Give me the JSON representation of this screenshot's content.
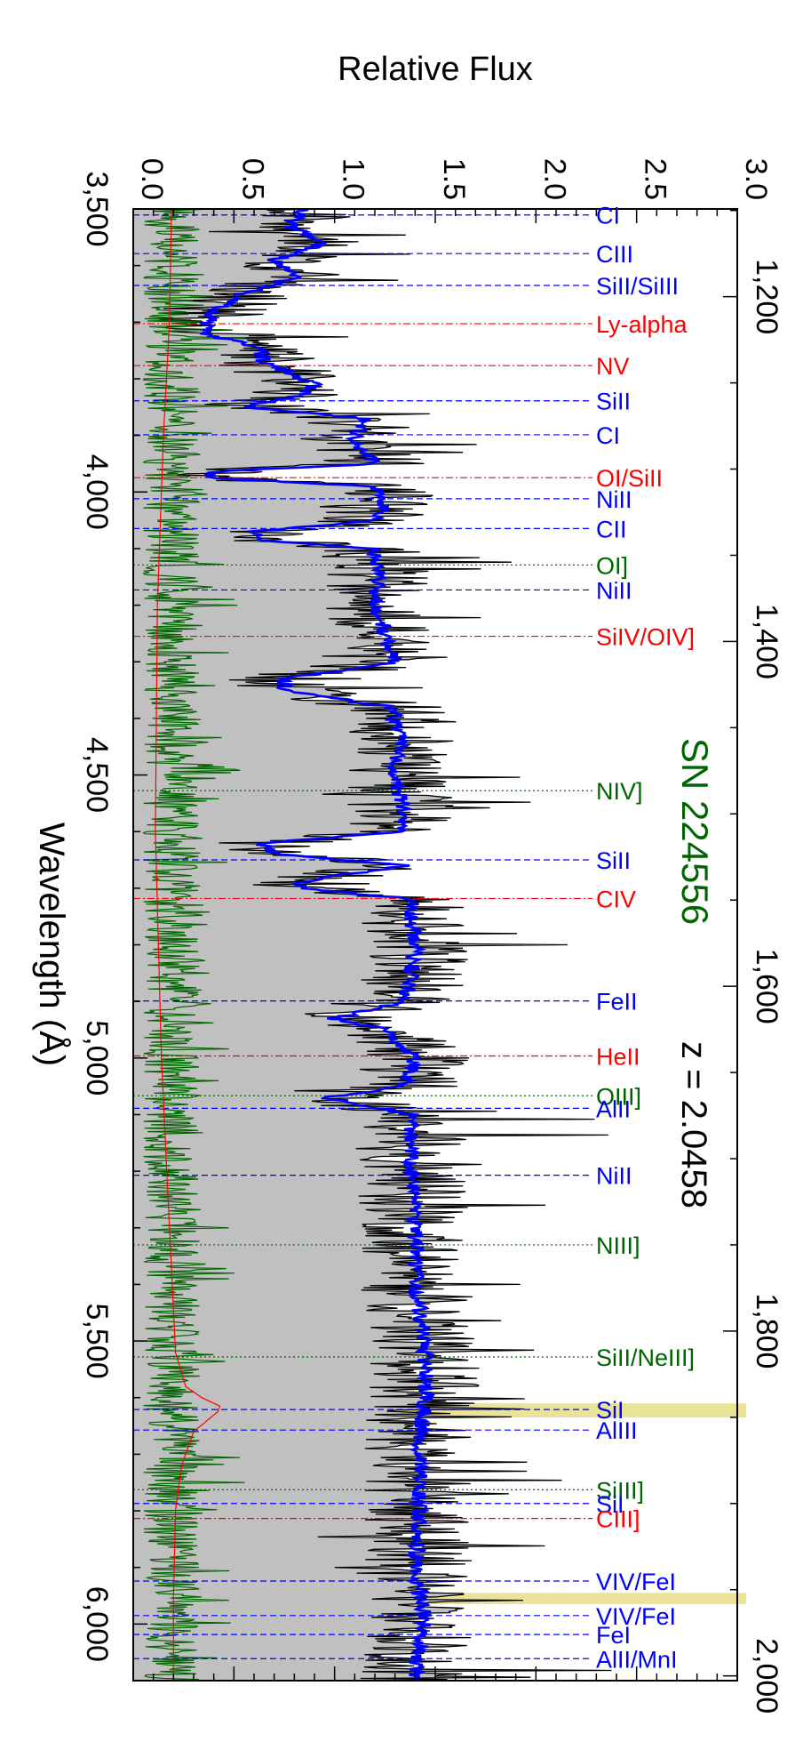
{
  "chart_data": {
    "type": "line",
    "orientation": "rotated-90",
    "title": "SN 224556",
    "redshift_label": "z = 2.0458",
    "xlabel": "Wavelength (Å)",
    "ylabel": "Relative Flux",
    "xlim": [
      3500,
      6100
    ],
    "ylim": [
      0.0,
      3.0
    ],
    "x_ticks": [
      {
        "value": 3500,
        "label": "3,500"
      },
      {
        "value": 4000,
        "label": "4,000"
      },
      {
        "value": 4500,
        "label": "4,500"
      },
      {
        "value": 5000,
        "label": "5,000"
      },
      {
        "value": 5500,
        "label": "5,500"
      },
      {
        "value": 6000,
        "label": "6,000"
      }
    ],
    "y_ticks": [
      {
        "value": 0.0,
        "label": "0.0"
      },
      {
        "value": 0.5,
        "label": "0.5"
      },
      {
        "value": 1.0,
        "label": "1.0"
      },
      {
        "value": 1.5,
        "label": "1.5"
      },
      {
        "value": 2.0,
        "label": "2.0"
      },
      {
        "value": 2.5,
        "label": "2.5"
      },
      {
        "value": 3.0,
        "label": "3.0"
      }
    ],
    "rest_ticks": [
      {
        "value": 1200,
        "label": "1,200"
      },
      {
        "value": 1400,
        "label": "1,400"
      },
      {
        "value": 1600,
        "label": "1,600"
      },
      {
        "value": 1800,
        "label": "1,800"
      },
      {
        "value": 2000,
        "label": "2,000"
      }
    ],
    "redshift": 2.0458,
    "grid": false,
    "colors": {
      "observed_fill": "#c0c0c0",
      "observed_line": "#000000",
      "model": "#0000ff",
      "error": "#006400",
      "sky": "#ff0000",
      "title": "#006400",
      "masked": "#ece39a"
    },
    "masked_regions": [
      [
        5610,
        5635
      ],
      [
        5945,
        5965
      ]
    ],
    "sky_curve": {
      "x": [
        3500,
        3700,
        3900,
        4200,
        4600,
        5000,
        5300,
        5520,
        5580,
        5600,
        5615,
        5625,
        5660,
        5720,
        5800,
        5950,
        6100
      ],
      "y": [
        0.19,
        0.18,
        0.15,
        0.12,
        0.11,
        0.14,
        0.18,
        0.21,
        0.26,
        0.34,
        0.43,
        0.42,
        0.3,
        0.24,
        0.21,
        0.2,
        0.2
      ]
    },
    "model_curve": {
      "x": [
        3500,
        3530,
        3560,
        3590,
        3620,
        3650,
        3680,
        3700,
        3720,
        3745,
        3770,
        3790,
        3810,
        3830,
        3850,
        3870,
        3890,
        3910,
        3930,
        3950,
        3965,
        3975,
        3990,
        4020,
        4050,
        4070,
        4085,
        4100,
        4150,
        4200,
        4250,
        4300,
        4330,
        4350,
        4380,
        4400,
        4450,
        4500,
        4550,
        4600,
        4620,
        4640,
        4660,
        4690,
        4700,
        4720,
        4740,
        4800,
        4850,
        4900,
        4930,
        4950,
        5000,
        5050,
        5070,
        5100,
        5200,
        5300,
        5400,
        5500,
        5600,
        5700,
        5800,
        5900,
        6000,
        6050,
        6100
      ],
      "y": [
        0.85,
        0.78,
        0.95,
        0.7,
        0.8,
        0.55,
        0.4,
        0.38,
        0.35,
        0.62,
        0.65,
        0.78,
        0.9,
        0.82,
        0.55,
        1.15,
        1.12,
        1.1,
        1.15,
        1.2,
        0.35,
        0.4,
        1.2,
        1.25,
        1.2,
        0.6,
        0.65,
        1.2,
        1.22,
        1.2,
        1.25,
        1.3,
        0.75,
        0.75,
        1.28,
        1.3,
        1.32,
        1.3,
        1.33,
        1.35,
        0.65,
        0.7,
        1.35,
        0.8,
        0.85,
        1.4,
        1.38,
        1.4,
        1.38,
        1.35,
        1.0,
        1.25,
        1.4,
        1.35,
        0.95,
        1.38,
        1.38,
        1.4,
        1.4,
        1.45,
        1.45,
        1.42,
        1.42,
        1.4,
        1.45,
        1.42,
        1.4
      ]
    },
    "line_ids": [
      {
        "label": "CI",
        "rest": 1152.6,
        "color": "#0000ff",
        "style": "dashed"
      },
      {
        "label": "CIII",
        "rest": 1175.0,
        "color": "#0000ff",
        "style": "dashed"
      },
      {
        "label": "SiII/SiIII",
        "rest": 1193.5,
        "color": "#0000ff",
        "style": "dashed"
      },
      {
        "label": "Ly-alpha",
        "rest": 1215.7,
        "color": "#ff0000",
        "style": "dashdot"
      },
      {
        "label": "NV",
        "rest": 1240.0,
        "color": "#ff0000",
        "style": "dashdot"
      },
      {
        "label": "SiII",
        "rest": 1260.4,
        "color": "#0000ff",
        "style": "dashed"
      },
      {
        "label": "CI",
        "rest": 1280.1,
        "color": "#0000ff",
        "style": "dashed"
      },
      {
        "label": "OI/SiII",
        "rest": 1305.0,
        "color": "#ff0000",
        "style": "dashdot"
      },
      {
        "label": "NiII",
        "rest": 1317.2,
        "color": "#0000ff",
        "style": "dashed"
      },
      {
        "label": "CII",
        "rest": 1334.5,
        "color": "#0000ff",
        "style": "dashed"
      },
      {
        "label": "OI]",
        "rest": 1355.6,
        "color": "#006400",
        "style": "dotted"
      },
      {
        "label": "NiII",
        "rest": 1370.1,
        "color": "#0000ff",
        "style": "dashed"
      },
      {
        "label": "SiIV/OIV]",
        "rest": 1397.0,
        "color": "#ff0000",
        "style": "dashdot"
      },
      {
        "label": "NIV]",
        "rest": 1486.5,
        "color": "#006400",
        "style": "dotted"
      },
      {
        "label": "SiII",
        "rest": 1526.7,
        "color": "#0000ff",
        "style": "dashed"
      },
      {
        "label": "CIV",
        "rest": 1549.1,
        "color": "#ff0000",
        "style": "dashdot"
      },
      {
        "label": "FeII",
        "rest": 1608.5,
        "color": "#0000ff",
        "style": "dashed"
      },
      {
        "label": "HeII",
        "rest": 1640.4,
        "color": "#ff0000",
        "style": "dashdot"
      },
      {
        "label": "OIII]",
        "rest": 1663.5,
        "color": "#006400",
        "style": "dotted"
      },
      {
        "label": "AlII",
        "rest": 1670.8,
        "color": "#0000ff",
        "style": "dashed"
      },
      {
        "label": "NiII",
        "rest": 1709.6,
        "color": "#0000ff",
        "style": "dashed"
      },
      {
        "label": "NIII]",
        "rest": 1750.0,
        "color": "#006400",
        "style": "dotted"
      },
      {
        "label": "SiII/NeIII]",
        "rest": 1815.0,
        "color": "#006400",
        "style": "dotted"
      },
      {
        "label": "SiI",
        "rest": 1845.5,
        "color": "#0000ff",
        "style": "dashed"
      },
      {
        "label": "AlIII",
        "rest": 1857.4,
        "color": "#0000ff",
        "style": "dashed"
      },
      {
        "label": "SiIII]",
        "rest": 1892.0,
        "color": "#006400",
        "style": "dotted"
      },
      {
        "label": "SiI",
        "rest": 1900.0,
        "color": "#0000ff",
        "style": "dashed"
      },
      {
        "label": "CIII]",
        "rest": 1908.7,
        "color": "#ff0000",
        "style": "dashdot"
      },
      {
        "label": "VIV/FeI",
        "rest": 1945.0,
        "color": "#0000ff",
        "style": "dashed"
      },
      {
        "label": "VIV/FeI",
        "rest": 1965.0,
        "color": "#0000ff",
        "style": "dashed"
      },
      {
        "label": "FeI",
        "rest": 1976.0,
        "color": "#0000ff",
        "style": "dashed"
      },
      {
        "label": "AlII/MnI",
        "rest": 1990.0,
        "color": "#0000ff",
        "style": "dashed"
      }
    ]
  }
}
